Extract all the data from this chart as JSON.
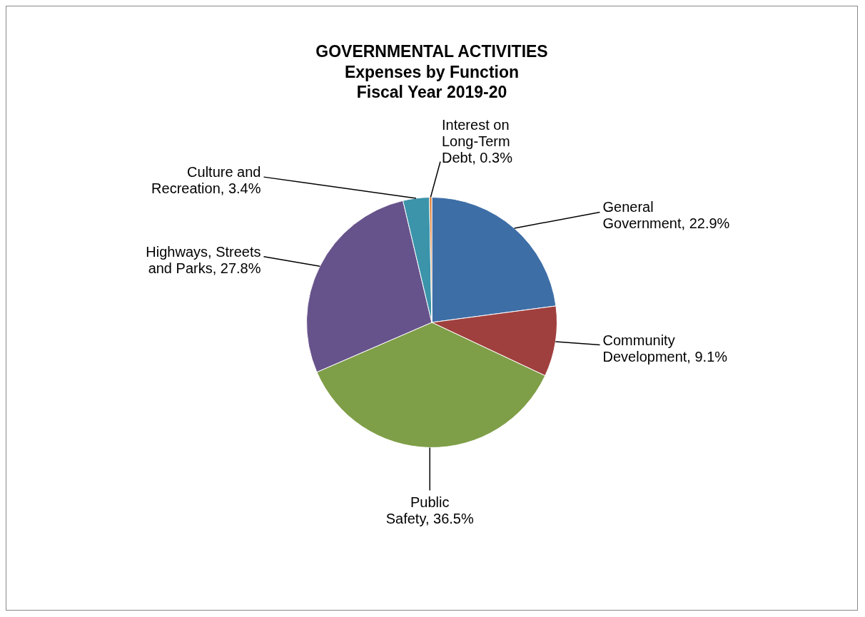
{
  "chart_data": {
    "type": "pie",
    "title": "GOVERNMENTAL ACTIVITIES",
    "subtitle": "Expenses by Function Fiscal Year 2019-20",
    "categories": [
      "General Government",
      "Community Development",
      "Public Safety",
      "Highways, Streets and Parks",
      "Culture and Recreation",
      "Interest on Long-Term Debt"
    ],
    "values": [
      22.9,
      9.1,
      36.5,
      27.8,
      3.4,
      0.3
    ],
    "value_labels": [
      "22.9%",
      "9.1%",
      "36.5%",
      "27.8%",
      "3.4%",
      "0.3%"
    ],
    "colors": [
      "#3e6ea6",
      "#a0403e",
      "#7f9e48",
      "#67538b",
      "#3b94aa",
      "#e07b2c"
    ],
    "data_labels": true,
    "legend": false
  }
}
